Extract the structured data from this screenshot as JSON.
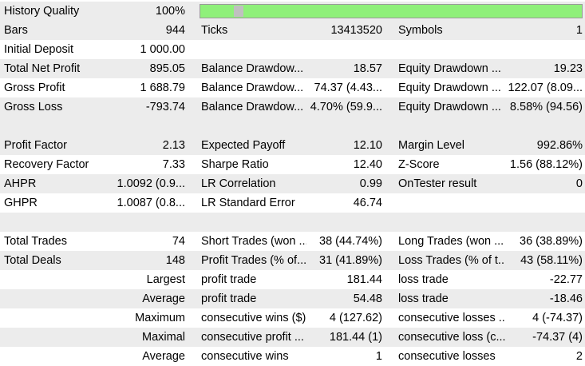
{
  "history_quality": {
    "label": "History Quality",
    "value": "100%",
    "fill_fraction": 1.0,
    "bar_color": "#8ff07a"
  },
  "summary": {
    "bars": {
      "label": "Bars",
      "value": "944"
    },
    "ticks": {
      "label": "Ticks",
      "value": "13413520"
    },
    "symbols": {
      "label": "Symbols",
      "value": "1"
    },
    "initial_deposit": {
      "label": "Initial Deposit",
      "value": "1 000.00"
    },
    "total_net_profit": {
      "label": "Total Net Profit",
      "value": "895.05"
    },
    "balance_drawdown_abs": {
      "label": "Balance Drawdow...",
      "value": "18.57"
    },
    "equity_drawdown_abs": {
      "label": "Equity Drawdown ...",
      "value": "19.23"
    },
    "gross_profit": {
      "label": "Gross Profit",
      "value": "1 688.79"
    },
    "balance_drawdown_max": {
      "label": "Balance Drawdow...",
      "value": "74.37 (4.43..."
    },
    "equity_drawdown_max": {
      "label": "Equity Drawdown ...",
      "value": "122.07 (8.09..."
    },
    "gross_loss": {
      "label": "Gross Loss",
      "value": "-793.74"
    },
    "balance_drawdown_rel": {
      "label": "Balance Drawdow...",
      "value": "4.70% (59.9..."
    },
    "equity_drawdown_rel": {
      "label": "Equity Drawdown ...",
      "value": "8.58% (94.56)"
    }
  },
  "ratios": {
    "profit_factor": {
      "label": "Profit Factor",
      "value": "2.13"
    },
    "expected_payoff": {
      "label": "Expected Payoff",
      "value": "12.10"
    },
    "margin_level": {
      "label": "Margin Level",
      "value": "992.86%"
    },
    "recovery_factor": {
      "label": "Recovery Factor",
      "value": "7.33"
    },
    "sharpe_ratio": {
      "label": "Sharpe Ratio",
      "value": "12.40"
    },
    "z_score": {
      "label": "Z-Score",
      "value": "1.56 (88.12%)"
    },
    "ahpr": {
      "label": "AHPR",
      "value": "1.0092 (0.9..."
    },
    "lr_correlation": {
      "label": "LR Correlation",
      "value": "0.99"
    },
    "ontester_result": {
      "label": "OnTester result",
      "value": "0"
    },
    "ghpr": {
      "label": "GHPR",
      "value": "1.0087 (0.8..."
    },
    "lr_standard_error": {
      "label": "LR Standard Error",
      "value": "46.74"
    }
  },
  "trades": {
    "total_trades": {
      "label": "Total Trades",
      "value": "74"
    },
    "short_trades": {
      "label": "Short Trades (won ...",
      "value": "38 (44.74%)"
    },
    "long_trades": {
      "label": "Long Trades (won ...",
      "value": "36 (38.89%)"
    },
    "total_deals": {
      "label": "Total Deals",
      "value": "148"
    },
    "profit_trades": {
      "label": "Profit Trades (% of...",
      "value": "31 (41.89%)"
    },
    "loss_trades": {
      "label": "Loss Trades (% of t...",
      "value": "43 (58.11%)"
    },
    "largest": {
      "label": "Largest",
      "profit_label": "profit trade",
      "profit_value": "181.44",
      "loss_label": "loss trade",
      "loss_value": "-22.77"
    },
    "average": {
      "label": "Average",
      "profit_label": "profit trade",
      "profit_value": "54.48",
      "loss_label": "loss trade",
      "loss_value": "-18.46"
    },
    "maximum": {
      "label": "Maximum",
      "profit_label": "consecutive wins ($)",
      "profit_value": "4 (127.62)",
      "loss_label": "consecutive losses ...",
      "loss_value": "4 (-74.37)"
    },
    "maximal": {
      "label": "Maximal",
      "profit_label": "consecutive profit ...",
      "profit_value": "181.44 (1)",
      "loss_label": "consecutive loss (c...",
      "loss_value": "-74.37 (4)"
    },
    "average_consecutive": {
      "label": "Average",
      "profit_label": "consecutive wins",
      "profit_value": "1",
      "loss_label": "consecutive losses",
      "loss_value": "2"
    }
  }
}
